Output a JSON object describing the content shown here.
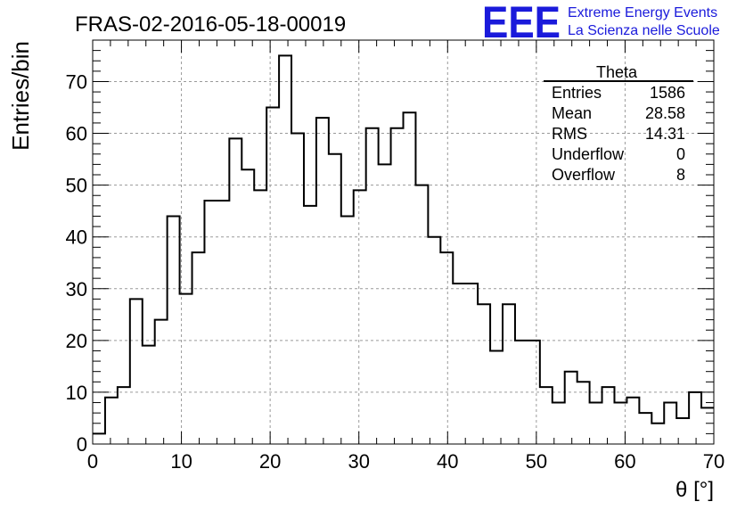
{
  "title": "FRAS-02-2016-05-18-00019",
  "logo": {
    "mark": "EEE",
    "line1": "Extreme Energy Events",
    "line2": "La Scienza nelle Scuole",
    "color": "#1a1adb"
  },
  "stats": {
    "name": "Theta",
    "rows": [
      {
        "label": "Entries",
        "value": "1586"
      },
      {
        "label": "Mean",
        "value": "28.58"
      },
      {
        "label": "RMS",
        "value": "14.31"
      },
      {
        "label": "Underflow",
        "value": "0"
      },
      {
        "label": "Overflow",
        "value": "8"
      }
    ]
  },
  "chart_data": {
    "type": "bar",
    "histogram": true,
    "title": "FRAS-02-2016-05-18-00019",
    "xlabel": "θ [°]",
    "ylabel": "Entries/bin",
    "xlim": [
      0,
      70
    ],
    "ylim": [
      0,
      78
    ],
    "grid": true,
    "bin_width": 1.4,
    "x_ticks": [
      0,
      10,
      20,
      30,
      40,
      50,
      60,
      70
    ],
    "y_ticks": [
      0,
      10,
      20,
      30,
      40,
      50,
      60,
      70
    ],
    "values": [
      2,
      9,
      11,
      28,
      19,
      24,
      44,
      29,
      37,
      47,
      47,
      59,
      53,
      49,
      65,
      75,
      60,
      46,
      63,
      56,
      44,
      49,
      61,
      54,
      61,
      64,
      50,
      40,
      37,
      31,
      31,
      27,
      18,
      27,
      20,
      20,
      11,
      8,
      14,
      12,
      8,
      11,
      8,
      9,
      6,
      4,
      8,
      5,
      10,
      7
    ]
  }
}
